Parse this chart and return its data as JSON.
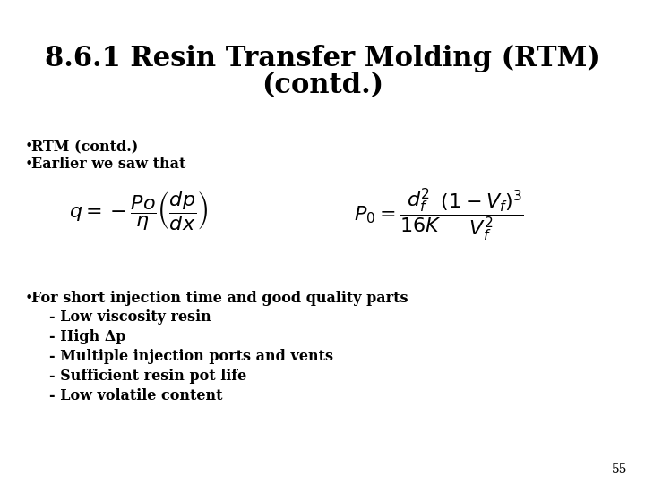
{
  "title_line1": "8.6.1 Resin Transfer Molding (RTM)",
  "title_line2": "(contd.)",
  "title_fontsize": 22,
  "bullet1": "RTM (contd.)",
  "bullet2": "Earlier we saw that",
  "bullet3_main": "For short injection time and good quality parts",
  "bullet3_sub": [
    "- Low viscosity resin",
    "- High Δp",
    "- Multiple injection ports and vents",
    "- Sufficient resin pot life",
    "- Low volatile content"
  ],
  "equation_left": "$q = -\\dfrac{Po}{\\eta}\\left(\\dfrac{dp}{dx}\\right)$",
  "equation_right": "$P_0 = \\dfrac{d_f^2}{16K}\\dfrac{\\left(1-V_f\\right)^3}{V_f^2}$",
  "page_number": "55",
  "bg_color": "#ffffff",
  "text_color": "#000000",
  "title_fontweight": "bold",
  "title_fontstyle": "normal",
  "bullet_fontsize": 11.5,
  "sub_fontsize": 11.5,
  "eq_fontsize": 16,
  "page_fontsize": 10
}
